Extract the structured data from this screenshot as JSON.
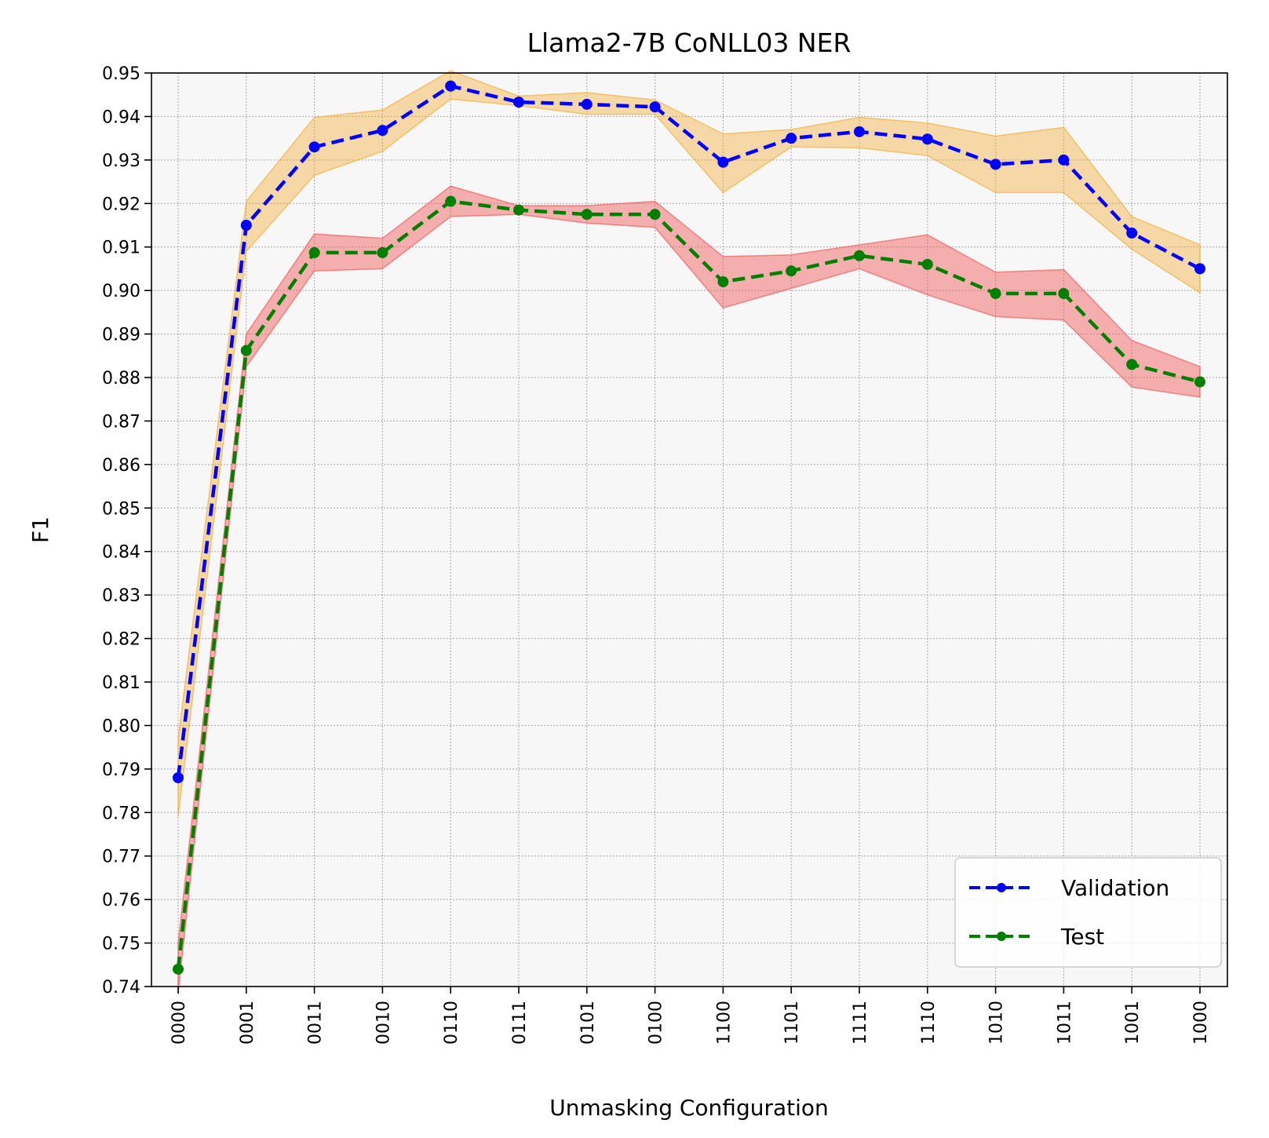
{
  "chart_data": {
    "type": "line",
    "title": "Llama2-7B CoNLL03 NER",
    "xlabel": "Unmasking Configuration",
    "ylabel": "F1",
    "ylim": [
      0.74,
      0.95
    ],
    "yticks": [
      "0.74",
      "0.75",
      "0.76",
      "0.77",
      "0.78",
      "0.79",
      "0.80",
      "0.81",
      "0.82",
      "0.83",
      "0.84",
      "0.85",
      "0.86",
      "0.87",
      "0.88",
      "0.89",
      "0.90",
      "0.91",
      "0.92",
      "0.93",
      "0.94",
      "0.95"
    ],
    "categories": [
      "0000",
      "0001",
      "0011",
      "0010",
      "0110",
      "0111",
      "0101",
      "0100",
      "1100",
      "1101",
      "1111",
      "1110",
      "1010",
      "1011",
      "1001",
      "1000"
    ],
    "grid": true,
    "legend_position": "lower-right",
    "series": [
      {
        "name": "Validation",
        "color": "#0000ff",
        "band_color": "#f5a623",
        "values": [
          0.788,
          0.915,
          0.933,
          0.9368,
          0.947,
          0.9433,
          0.9428,
          0.9422,
          0.9295,
          0.935,
          0.9365,
          0.9348,
          0.929,
          0.93,
          0.9132,
          0.905
        ],
        "lower": [
          0.779,
          0.909,
          0.9265,
          0.932,
          0.944,
          0.9425,
          0.9405,
          0.9405,
          0.9225,
          0.933,
          0.9328,
          0.931,
          0.9225,
          0.9225,
          0.9095,
          0.8995
        ],
        "upper": [
          0.797,
          0.9205,
          0.9398,
          0.9415,
          0.9505,
          0.9447,
          0.9455,
          0.9438,
          0.936,
          0.937,
          0.9398,
          0.9385,
          0.9355,
          0.9375,
          0.917,
          0.9105
        ]
      },
      {
        "name": "Test",
        "color": "#008000",
        "band_color": "#f24b4b",
        "values": [
          0.744,
          0.8862,
          0.9087,
          0.9087,
          0.9205,
          0.9185,
          0.9175,
          0.9175,
          0.902,
          0.9045,
          0.908,
          0.906,
          0.8993,
          0.8993,
          0.883,
          0.879
        ],
        "lower": [
          0.7385,
          0.8825,
          0.9045,
          0.905,
          0.917,
          0.9175,
          0.9155,
          0.9145,
          0.896,
          0.9005,
          0.905,
          0.899,
          0.894,
          0.8932,
          0.8778,
          0.8755
        ],
        "upper": [
          0.75,
          0.89,
          0.913,
          0.912,
          0.924,
          0.9195,
          0.9195,
          0.9205,
          0.9078,
          0.9082,
          0.9105,
          0.9128,
          0.9042,
          0.9048,
          0.8885,
          0.8825
        ]
      }
    ]
  }
}
